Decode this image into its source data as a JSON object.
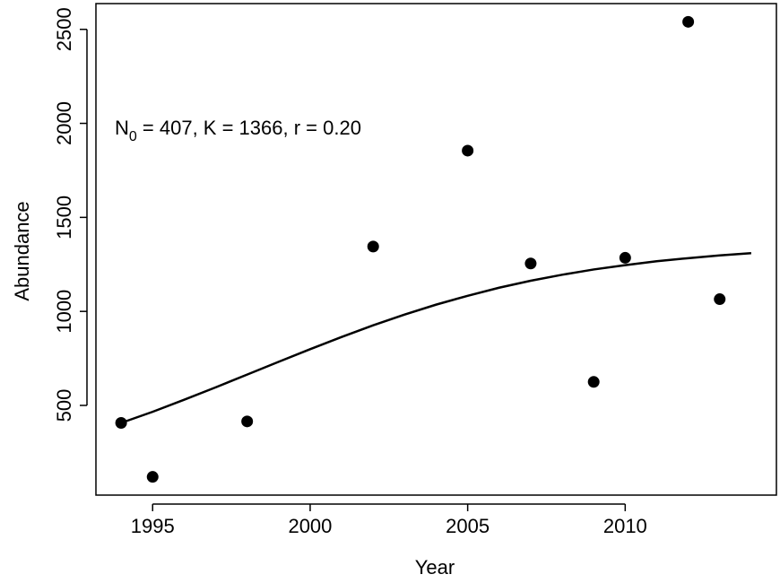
{
  "chart_data": {
    "type": "scatter",
    "xlabel": "Year",
    "ylabel": "Abundance",
    "annotation": {
      "text": "N",
      "sub": "0",
      "rest": " = 407, K = 1366, r = 0.20"
    },
    "points": {
      "color": "#000000",
      "x": [
        1994,
        1995,
        1998,
        2002,
        2005,
        2007,
        2009,
        2010,
        2012,
        2013
      ],
      "values": [
        407,
        120,
        415,
        1345,
        1855,
        1255,
        625,
        1285,
        2540,
        1065
      ]
    },
    "curve": {
      "color": "#000000",
      "x": [
        1994,
        1995,
        1996,
        1997,
        1998,
        1999,
        2000,
        2001,
        2002,
        2003,
        2004,
        2005,
        2006,
        2007,
        2008,
        2009,
        2010,
        2011,
        2012,
        2013,
        2014
      ],
      "values": [
        407,
        466,
        530,
        596,
        664,
        732,
        799,
        864,
        926,
        983,
        1036,
        1083,
        1126,
        1163,
        1195,
        1223,
        1246,
        1267,
        1283,
        1298,
        1310
      ]
    },
    "xlim": [
      1993.2,
      2014.8
    ],
    "ylim": [
      23,
      2637
    ],
    "xticks": [
      1995,
      2000,
      2005,
      2010
    ],
    "yticks": [
      500,
      1000,
      1500,
      2000,
      2500
    ]
  }
}
